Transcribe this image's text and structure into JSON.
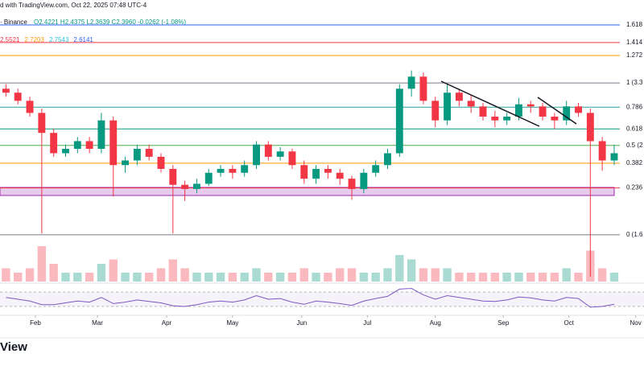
{
  "chart_data": {
    "type": "candlestick",
    "header": "d with TradingView.com, Oct 22, 2025 07:48 UTC-4",
    "symbol_line": "· Binance",
    "ohlc_line": "O2.4221  H2.4375  L2.3639  C2.3960  -0.0262 (-1.08%)",
    "ma_values": [
      {
        "value": 2.5521,
        "color": "#f23645"
      },
      {
        "value": 2.7203,
        "color": "#ff9800"
      },
      {
        "value": 2.7543,
        "color": "#26c6da"
      },
      {
        "value": 2.6141,
        "color": "#2962ff"
      }
    ],
    "log_scale": true,
    "ylim": [
      1.28,
      4.9
    ],
    "xlim": [
      -0.5,
      53.5
    ],
    "xticks": [
      {
        "value": 2.47,
        "label": "Feb"
      },
      {
        "value": 7.67,
        "label": "Mar"
      },
      {
        "value": 13.47,
        "label": "Apr"
      },
      {
        "value": 19.0,
        "label": "May"
      },
      {
        "value": 24.8,
        "label": "Jun"
      },
      {
        "value": 30.3,
        "label": "Jul"
      },
      {
        "value": 36.0,
        "label": "Aug"
      },
      {
        "value": 41.7,
        "label": "Sep"
      },
      {
        "value": 47.2,
        "label": "Oct"
      },
      {
        "value": 52.8,
        "label": "Nov"
      }
    ],
    "fib_levels": [
      {
        "value": 4.35,
        "label": "1.618",
        "color": "#2962ff"
      },
      {
        "value": 4.0,
        "label": "1.414",
        "color": "#f23645"
      },
      {
        "value": 3.76,
        "label": "1.272",
        "color": "#ff9800"
      },
      {
        "value": 3.3,
        "label": "1 (3.3",
        "color": "#787b86"
      },
      {
        "value": 2.94,
        "label": "0.786",
        "color": "#26a69a"
      },
      {
        "value": 2.65,
        "label": "0.618",
        "color": "#089981"
      },
      {
        "value": 2.45,
        "label": "0.5 (2",
        "color": "#4caf50"
      },
      {
        "value": 2.25,
        "label": "0.382",
        "color": "#ff9800"
      },
      {
        "value": 2.0,
        "label": "0.236",
        "color": "#f23645"
      },
      {
        "value": 1.6,
        "label": "0 (1.6",
        "color": "#787b86"
      }
    ],
    "up_color": "#089981",
    "down_color": "#f23645",
    "candles": [
      [
        3.21,
        3.28,
        3.09,
        3.15
      ],
      [
        3.15,
        3.21,
        2.98,
        3.03
      ],
      [
        3.03,
        3.09,
        2.81,
        2.86
      ],
      [
        2.86,
        2.92,
        1.61,
        2.6
      ],
      [
        2.6,
        2.65,
        2.32,
        2.36
      ],
      [
        2.36,
        2.46,
        2.32,
        2.41
      ],
      [
        2.41,
        2.55,
        2.36,
        2.5
      ],
      [
        2.5,
        2.55,
        2.36,
        2.41
      ],
      [
        2.41,
        2.86,
        2.36,
        2.76
      ],
      [
        2.76,
        2.81,
        1.92,
        2.23
      ],
      [
        2.23,
        2.32,
        2.15,
        2.28
      ],
      [
        2.28,
        2.46,
        2.23,
        2.41
      ],
      [
        2.41,
        2.46,
        2.28,
        2.32
      ],
      [
        2.32,
        2.36,
        2.15,
        2.19
      ],
      [
        2.19,
        2.23,
        1.61,
        2.03
      ],
      [
        2.03,
        2.07,
        1.88,
        1.99
      ],
      [
        1.99,
        2.09,
        1.95,
        2.04
      ],
      [
        2.04,
        2.19,
        2.02,
        2.15
      ],
      [
        2.15,
        2.23,
        2.11,
        2.19
      ],
      [
        2.19,
        2.23,
        2.09,
        2.15
      ],
      [
        2.15,
        2.28,
        2.11,
        2.23
      ],
      [
        2.23,
        2.5,
        2.19,
        2.46
      ],
      [
        2.46,
        2.5,
        2.28,
        2.32
      ],
      [
        2.32,
        2.43,
        2.28,
        2.38
      ],
      [
        2.38,
        2.41,
        2.19,
        2.23
      ],
      [
        2.23,
        2.28,
        2.04,
        2.09
      ],
      [
        2.09,
        2.23,
        2.04,
        2.19
      ],
      [
        2.19,
        2.23,
        2.09,
        2.15
      ],
      [
        2.15,
        2.19,
        2.03,
        2.09
      ],
      [
        2.09,
        2.12,
        1.89,
        1.99
      ],
      [
        1.99,
        2.19,
        1.95,
        2.15
      ],
      [
        2.15,
        2.28,
        2.11,
        2.23
      ],
      [
        2.23,
        2.41,
        2.19,
        2.36
      ],
      [
        2.36,
        3.28,
        2.32,
        3.21
      ],
      [
        3.21,
        3.5,
        3.09,
        3.4
      ],
      [
        3.4,
        3.47,
        2.98,
        3.03
      ],
      [
        3.03,
        3.09,
        2.67,
        2.76
      ],
      [
        2.76,
        3.28,
        2.7,
        3.15
      ],
      [
        3.15,
        3.21,
        2.95,
        3.03
      ],
      [
        3.03,
        3.12,
        2.86,
        2.95
      ],
      [
        2.95,
        3.0,
        2.76,
        2.81
      ],
      [
        2.81,
        2.89,
        2.67,
        2.76
      ],
      [
        2.76,
        2.86,
        2.7,
        2.81
      ],
      [
        2.81,
        3.07,
        2.76,
        2.98
      ],
      [
        2.98,
        3.03,
        2.86,
        2.95
      ],
      [
        2.95,
        3.0,
        2.76,
        2.81
      ],
      [
        2.81,
        2.86,
        2.65,
        2.76
      ],
      [
        2.76,
        3.03,
        2.7,
        2.95
      ],
      [
        2.95,
        3.0,
        2.81,
        2.86
      ],
      [
        2.86,
        2.92,
        1.31,
        2.5
      ],
      [
        2.5,
        2.55,
        2.17,
        2.28
      ],
      [
        2.28,
        2.46,
        2.23,
        2.36
      ]
    ],
    "volume_lim": [
      0,
      10
    ],
    "volume": [
      3,
      2,
      3,
      8,
      4,
      2,
      2,
      2,
      4,
      5,
      2,
      2,
      2,
      3,
      5,
      3,
      2,
      2,
      2,
      2,
      2,
      3,
      2,
      2,
      2,
      3,
      2,
      2,
      3,
      3,
      2,
      2,
      3,
      6,
      5,
      3,
      3,
      3,
      2,
      2,
      2,
      2,
      2,
      2,
      2,
      2,
      2,
      3,
      2,
      7,
      3,
      2
    ],
    "rsi_lim": [
      10,
      90
    ],
    "rsi_bands": [
      30,
      70
    ],
    "rsi_color": "#7e57c2",
    "rsi": [
      55,
      50,
      45,
      35,
      35,
      40,
      45,
      42,
      55,
      38,
      42,
      48,
      44,
      40,
      32,
      30,
      35,
      42,
      45,
      42,
      48,
      60,
      50,
      52,
      42,
      36,
      45,
      42,
      38,
      33,
      45,
      52,
      58,
      78,
      80,
      62,
      50,
      60,
      55,
      50,
      45,
      44,
      48,
      56,
      54,
      48,
      45,
      55,
      52,
      28,
      30,
      36
    ]
  }
}
